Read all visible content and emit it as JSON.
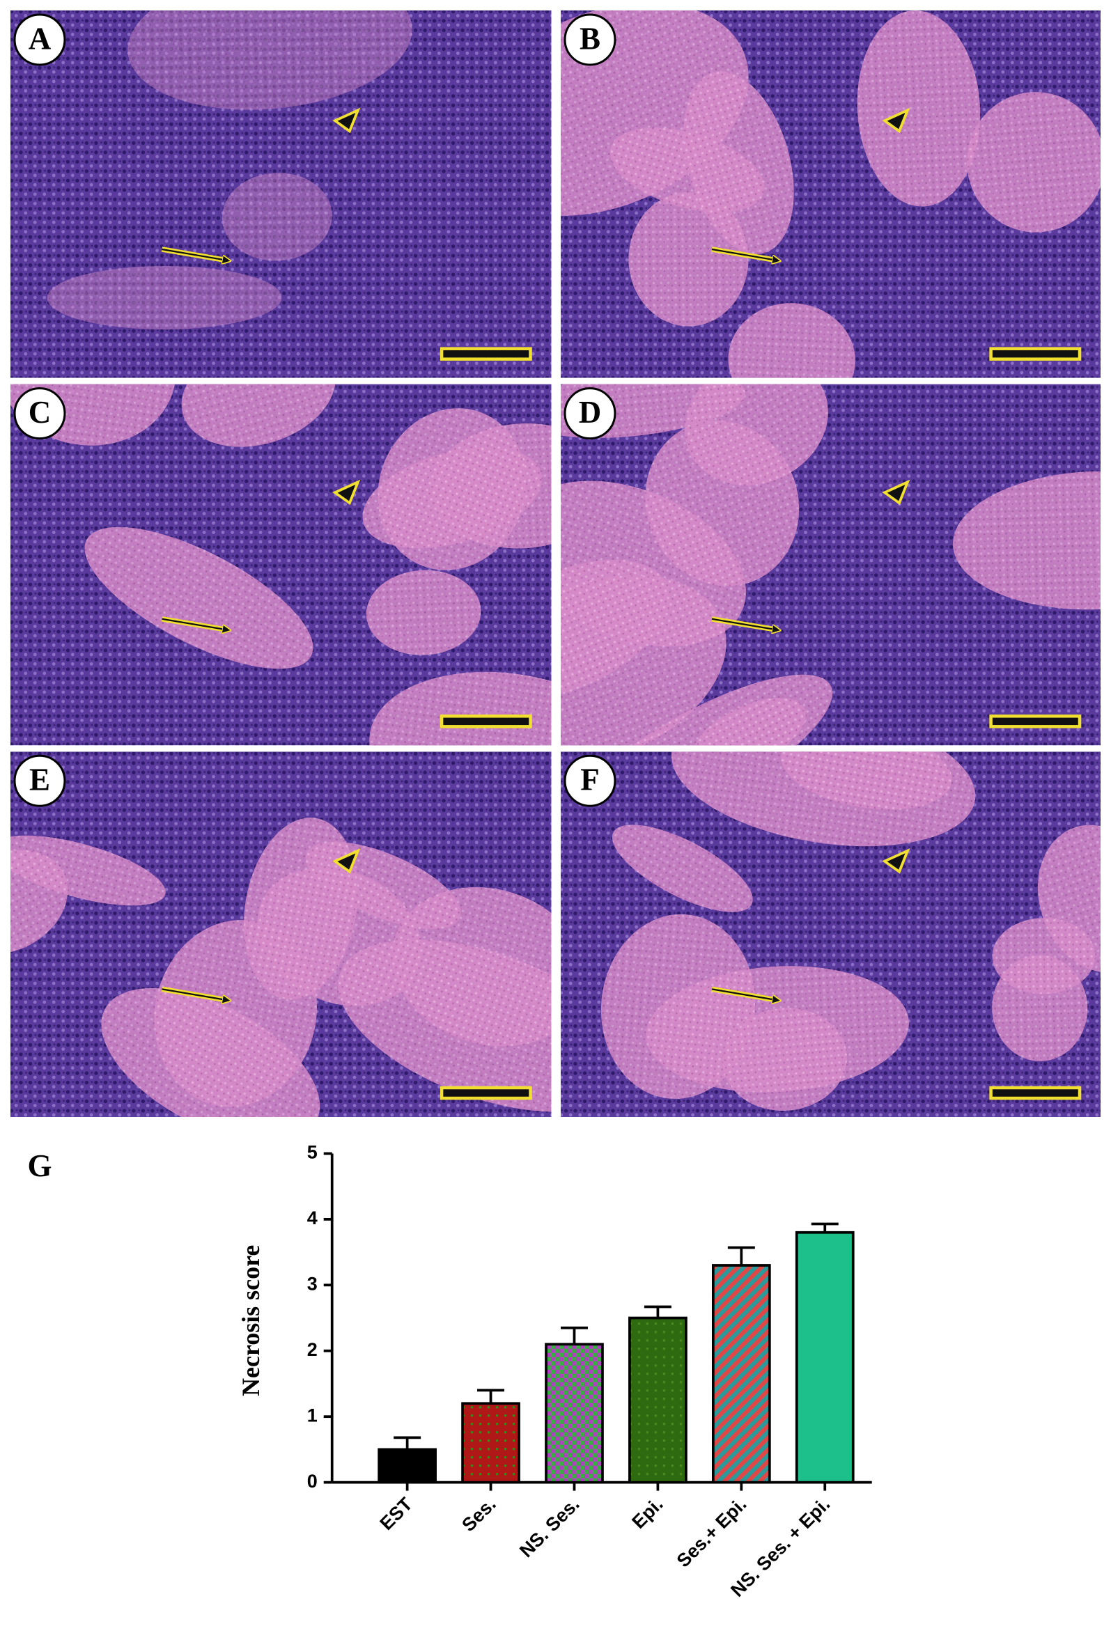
{
  "panels": [
    {
      "label": "A"
    },
    {
      "label": "B"
    },
    {
      "label": "C"
    },
    {
      "label": "D"
    },
    {
      "label": "E"
    },
    {
      "label": "F"
    }
  ],
  "chart_label": "G",
  "chart_data": {
    "type": "bar",
    "y_label": "Necrosis score",
    "categories": [
      "EST",
      "Ses.",
      "NS. Ses.",
      "Epi.",
      "Ses.+ Epi.",
      "NS. Ses. + Epi."
    ],
    "values": [
      0.5,
      1.2,
      2.1,
      2.5,
      3.3,
      3.8
    ],
    "errors": [
      0.18,
      0.2,
      0.25,
      0.17,
      0.27,
      0.13
    ],
    "colors": [
      "#000000",
      "#b01818",
      "#b040c0",
      "#2e6a10",
      "#e04848",
      "#1dbf8a"
    ],
    "patterns": [
      "solid",
      "dots",
      "checker",
      "dots",
      "stripes",
      "solid"
    ],
    "pattern_colors": [
      "#000000",
      "#3a8a1a",
      "#38b040",
      "#4a8a20",
      "#2a9a9a",
      "#1dbf8a"
    ],
    "ylim": [
      0,
      5
    ],
    "yticks": [
      0,
      1,
      2,
      3,
      4,
      5
    ]
  }
}
